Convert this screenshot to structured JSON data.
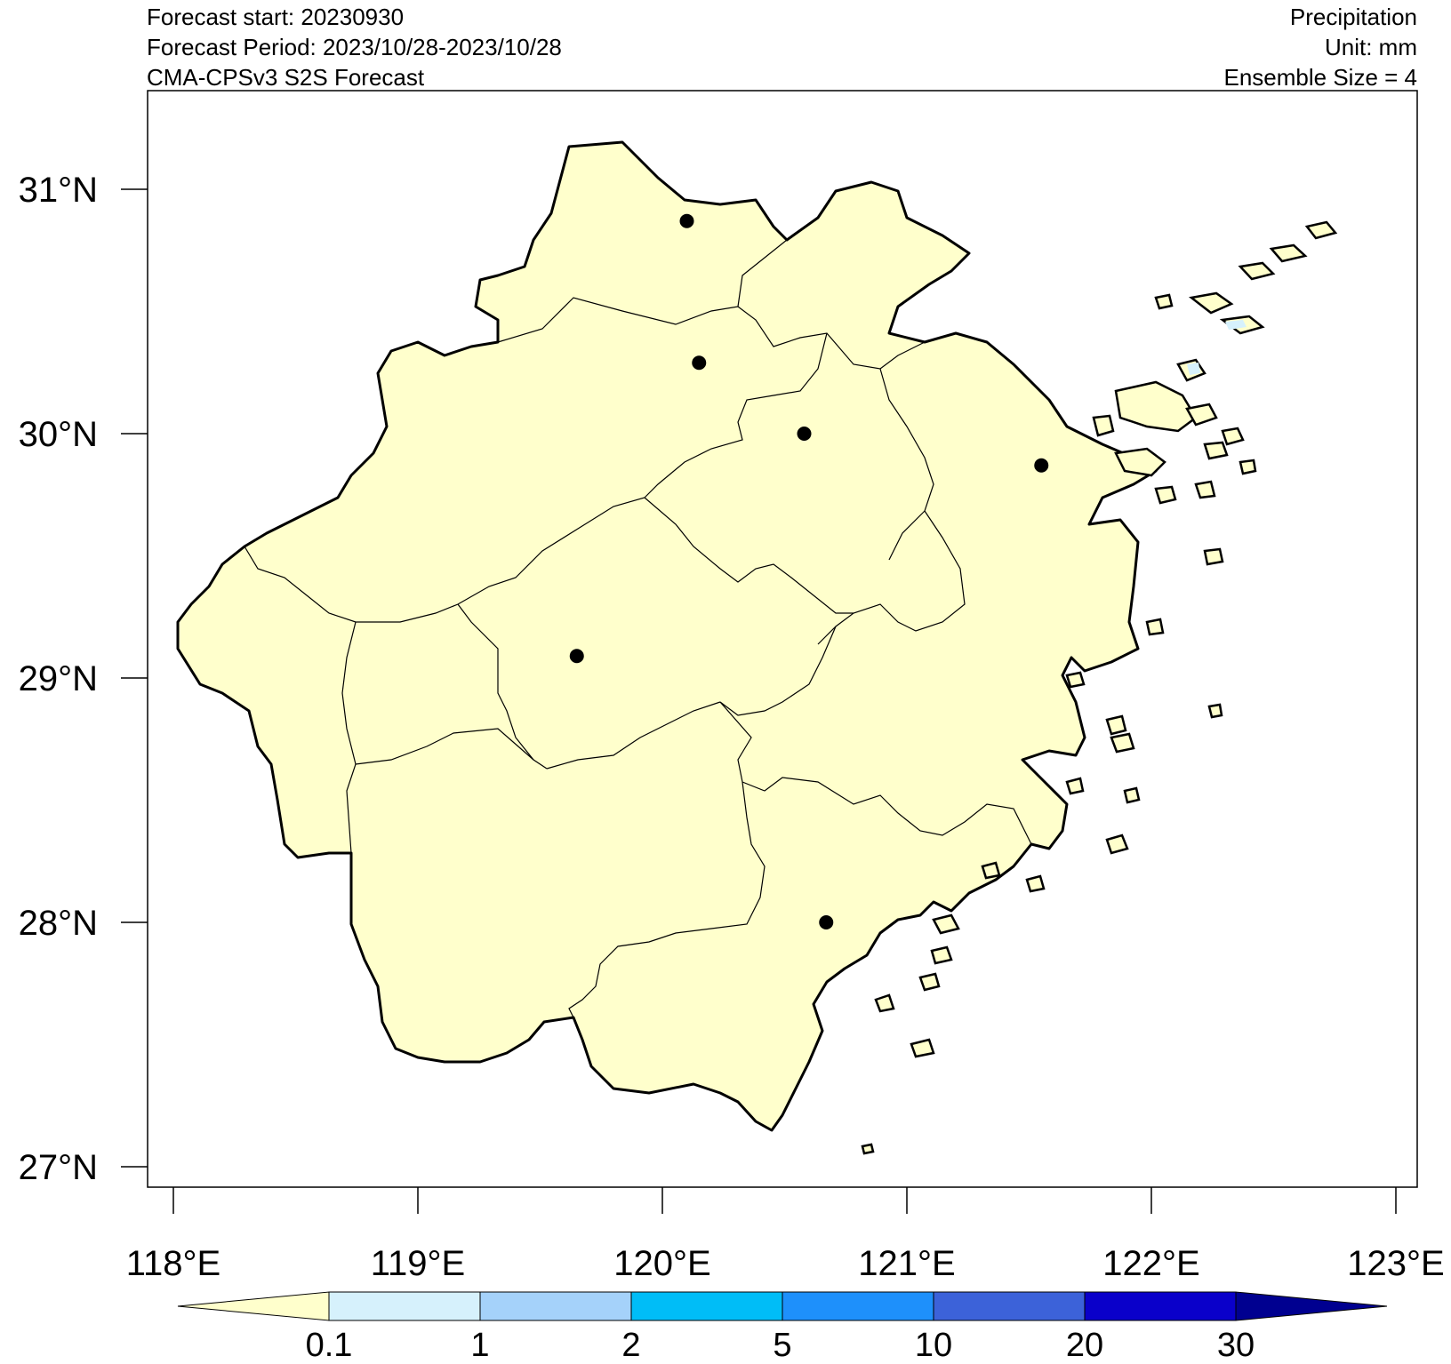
{
  "header": {
    "left": [
      "Forecast start: 20230930",
      "Forecast Period: 2023/10/28-2023/10/28",
      "CMA-CPSv3 S2S Forecast"
    ],
    "right": [
      "Precipitation",
      "Unit: mm",
      "Ensemble Size = 4"
    ]
  },
  "map": {
    "region_fill": "#ffffcc",
    "outline_color": "#000000",
    "lon_range": [
      117.9,
      123.1
    ],
    "lat_range": [
      26.9,
      31.4
    ],
    "lon_ticks": [
      {
        "value": 118,
        "label": "118°E"
      },
      {
        "value": 119,
        "label": "119°E"
      },
      {
        "value": 120,
        "label": "120°E"
      },
      {
        "value": 121,
        "label": "121°E"
      },
      {
        "value": 122,
        "label": "122°E"
      },
      {
        "value": 123,
        "label": "123°E"
      }
    ],
    "lat_ticks": [
      {
        "value": 31,
        "label": "31°N"
      },
      {
        "value": 30,
        "label": "30°N"
      },
      {
        "value": 29,
        "label": "29°N"
      },
      {
        "value": 28,
        "label": "28°N"
      },
      {
        "value": 27,
        "label": "27°N"
      }
    ],
    "stations": [
      {
        "lon": 120.1,
        "lat": 30.87
      },
      {
        "lon": 120.15,
        "lat": 30.29
      },
      {
        "lon": 120.58,
        "lat": 30.0
      },
      {
        "lon": 121.55,
        "lat": 29.87
      },
      {
        "lon": 119.65,
        "lat": 29.09
      },
      {
        "lon": 120.67,
        "lat": 28.0
      }
    ]
  },
  "colorbar": {
    "labels": [
      "0.1",
      "1",
      "2",
      "5",
      "10",
      "20",
      "30"
    ],
    "colors": [
      "#ffffcc",
      "#d6f1fc",
      "#a5d2fa",
      "#00bdf7",
      "#1e90fb",
      "#3c62d9",
      "#0a00ca",
      "#000090"
    ]
  }
}
